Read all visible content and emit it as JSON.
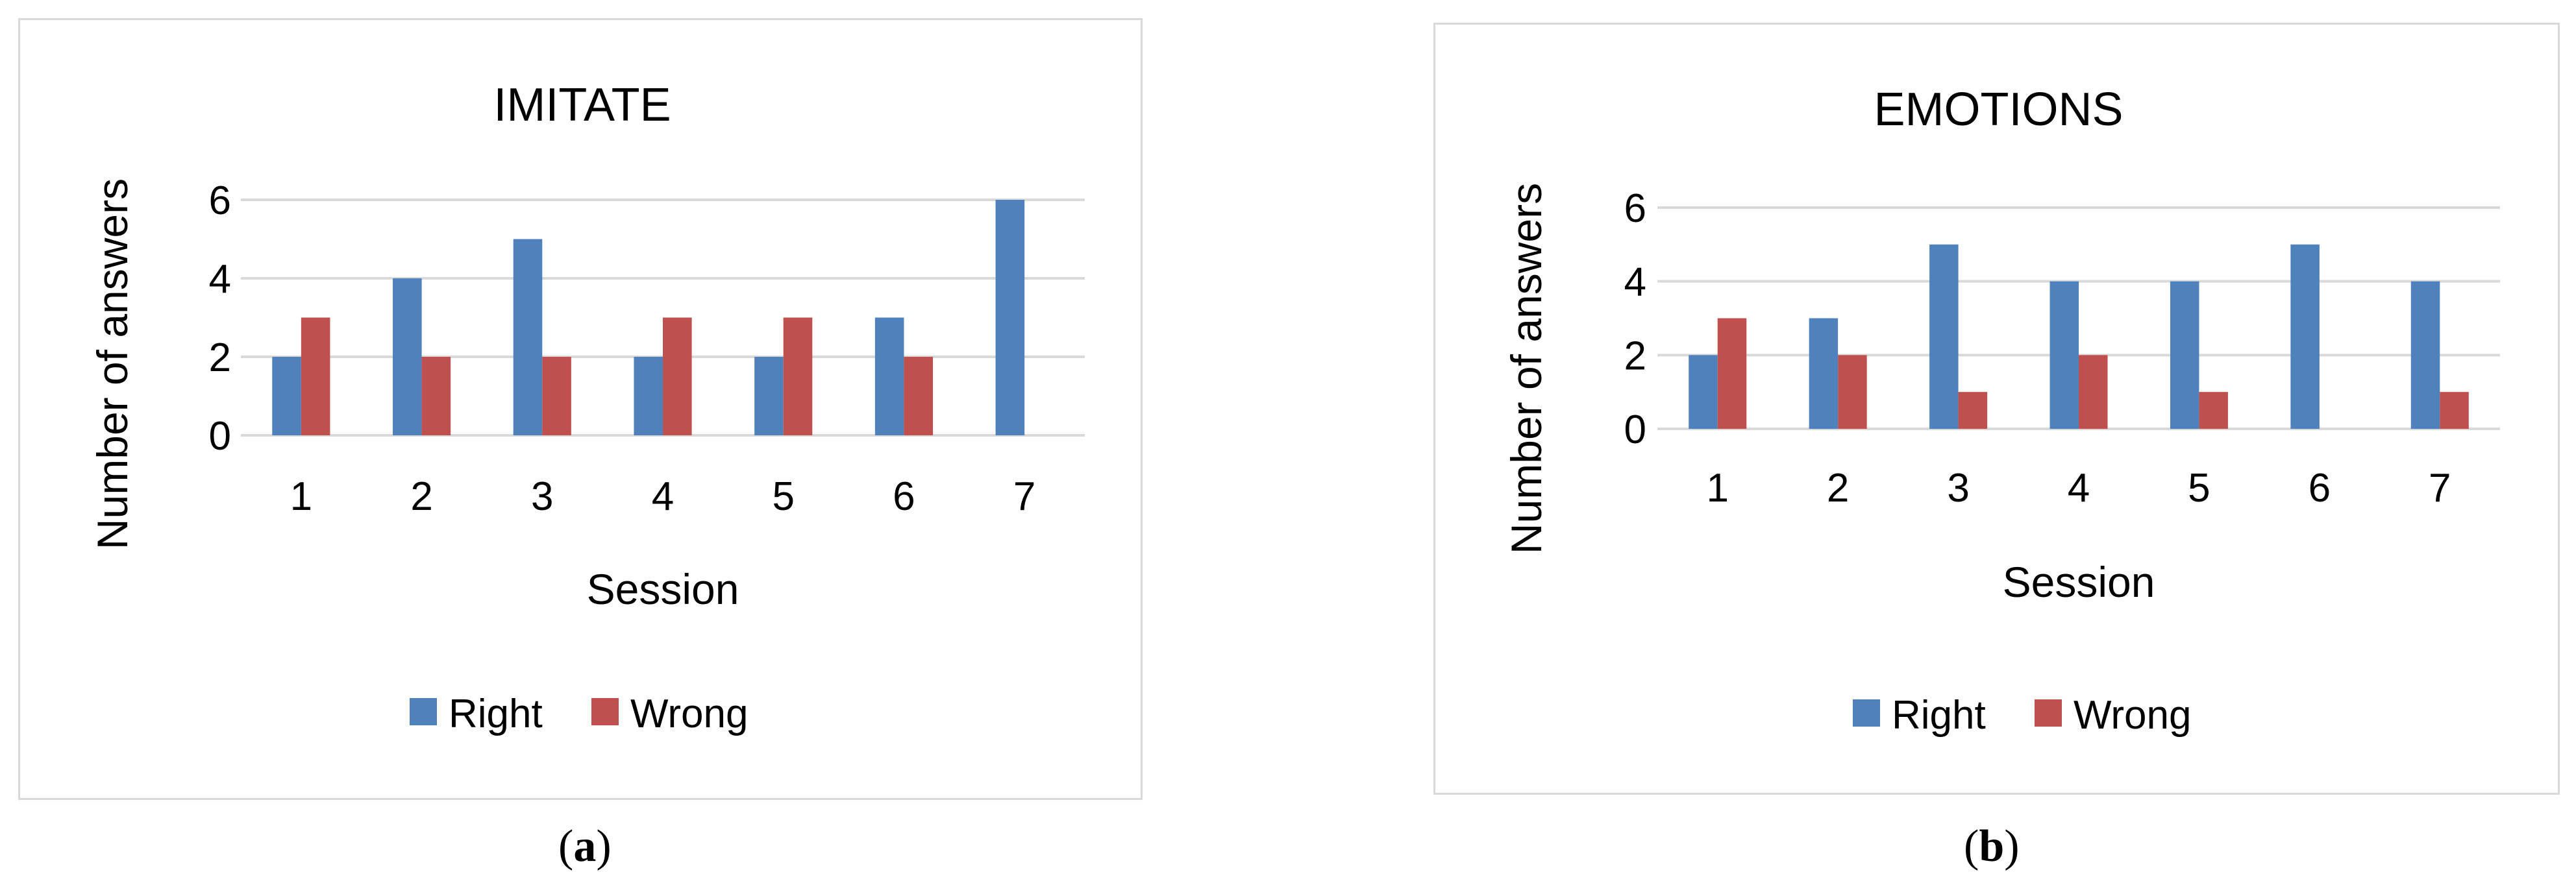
{
  "chart_data": [
    {
      "type": "bar",
      "title": "IMITATE",
      "xlabel": "Session",
      "ylabel": "Number of answers",
      "categories": [
        "1",
        "2",
        "3",
        "4",
        "5",
        "6",
        "7"
      ],
      "series": [
        {
          "name": "Right",
          "color": "#4f81bd",
          "values": [
            2,
            4,
            5,
            2,
            2,
            3,
            6
          ]
        },
        {
          "name": "Wrong",
          "color": "#c0504d",
          "values": [
            3,
            2,
            2,
            3,
            3,
            2,
            0
          ]
        }
      ],
      "ylim": [
        0,
        6
      ],
      "yticks": [
        0,
        2,
        4,
        6
      ],
      "grid": true,
      "legend": "bottom"
    },
    {
      "type": "bar",
      "title": "EMOTIONS",
      "xlabel": "Session",
      "ylabel": "Number of answers",
      "categories": [
        "1",
        "2",
        "3",
        "4",
        "5",
        "6",
        "7"
      ],
      "series": [
        {
          "name": "Right",
          "color": "#4f81bd",
          "values": [
            2,
            3,
            5,
            4,
            4,
            5,
            4
          ]
        },
        {
          "name": "Wrong",
          "color": "#c0504d",
          "values": [
            3,
            2,
            1,
            2,
            1,
            0,
            1
          ]
        }
      ],
      "ylim": [
        0,
        6
      ],
      "yticks": [
        0,
        2,
        4,
        6
      ],
      "grid": true,
      "legend": "bottom"
    }
  ],
  "captions": {
    "a_open": "(",
    "a_letter": "a",
    "a_close": ")",
    "b_open": "(",
    "b_letter": "b",
    "b_close": ")"
  }
}
